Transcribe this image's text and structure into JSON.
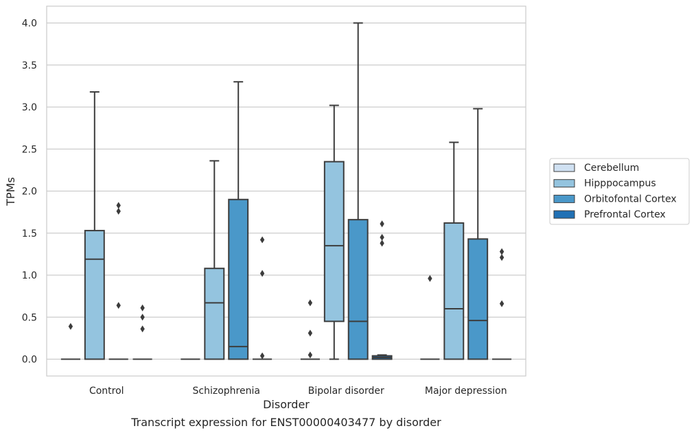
{
  "chart_data": {
    "type": "box",
    "xlabel": "Disorder",
    "ylabel": "TPMs",
    "caption": "Transcript expression for ENST00000403477 by disorder",
    "categories": [
      "Control",
      "Schizophrenia",
      "Bipolar disorder",
      "Major depression"
    ],
    "ylim": [
      -0.2,
      4.2
    ],
    "yticks": [
      "0.0",
      "0.5",
      "1.0",
      "1.5",
      "2.0",
      "2.5",
      "3.0",
      "3.5",
      "4.0"
    ],
    "ytick_values": [
      0,
      0.5,
      1.0,
      1.5,
      2.0,
      2.5,
      3.0,
      3.5,
      4.0
    ],
    "grid": true,
    "legend_position": "right",
    "series": [
      {
        "name": "Cerebellum",
        "color": "#d0e1f2",
        "boxes": [
          {
            "q1": 0,
            "median": 0,
            "q3": 0,
            "whisker_low": 0,
            "whisker_high": 0,
            "outliers": [
              0.39
            ]
          },
          {
            "q1": 0,
            "median": 0,
            "q3": 0,
            "whisker_low": 0,
            "whisker_high": 0,
            "outliers": []
          },
          {
            "q1": 0,
            "median": 0,
            "q3": 0,
            "whisker_low": 0,
            "whisker_high": 0,
            "outliers": [
              0.05,
              0.31,
              0.67
            ]
          },
          {
            "q1": 0,
            "median": 0,
            "q3": 0,
            "whisker_low": 0,
            "whisker_high": 0,
            "outliers": [
              0.96
            ]
          }
        ]
      },
      {
        "name": "Hipppocampus",
        "color": "#94c4df",
        "boxes": [
          {
            "q1": 0,
            "median": 1.19,
            "q3": 1.53,
            "whisker_low": 0,
            "whisker_high": 3.18,
            "outliers": []
          },
          {
            "q1": 0,
            "median": 0.67,
            "q3": 1.08,
            "whisker_low": 0,
            "whisker_high": 2.36,
            "outliers": []
          },
          {
            "q1": 0.45,
            "median": 1.35,
            "q3": 2.35,
            "whisker_low": 0,
            "whisker_high": 3.02,
            "outliers": []
          },
          {
            "q1": 0,
            "median": 0.6,
            "q3": 1.62,
            "whisker_low": 0,
            "whisker_high": 2.58,
            "outliers": []
          }
        ]
      },
      {
        "name": "Orbitofontal Cortex",
        "color": "#4a98c9",
        "boxes": [
          {
            "q1": 0,
            "median": 0,
            "q3": 0,
            "whisker_low": 0,
            "whisker_high": 0,
            "outliers": [
              0.64,
              1.76,
              1.83
            ]
          },
          {
            "q1": 0,
            "median": 0.15,
            "q3": 1.9,
            "whisker_low": 0,
            "whisker_high": 3.3,
            "outliers": []
          },
          {
            "q1": 0,
            "median": 0.45,
            "q3": 1.66,
            "whisker_low": 0,
            "whisker_high": 4.0,
            "outliers": []
          },
          {
            "q1": 0,
            "median": 0.46,
            "q3": 1.43,
            "whisker_low": 0,
            "whisker_high": 2.98,
            "outliers": []
          }
        ]
      },
      {
        "name": "Prefrontal Cortex",
        "color": "#2171b5",
        "boxes": [
          {
            "q1": 0,
            "median": 0,
            "q3": 0,
            "whisker_low": 0,
            "whisker_high": 0,
            "outliers": [
              0.36,
              0.5,
              0.61
            ]
          },
          {
            "q1": 0,
            "median": 0,
            "q3": 0,
            "whisker_low": 0,
            "whisker_high": 0,
            "outliers": [
              0.04,
              1.02,
              1.42
            ]
          },
          {
            "q1": 0,
            "median": 0.02,
            "q3": 0.04,
            "whisker_low": 0,
            "whisker_high": 0.05,
            "outliers": [
              1.38,
              1.45,
              1.61
            ]
          },
          {
            "q1": 0,
            "median": 0,
            "q3": 0,
            "whisker_low": 0,
            "whisker_high": 0,
            "outliers": [
              0.66,
              1.21,
              1.28
            ]
          }
        ]
      }
    ]
  }
}
